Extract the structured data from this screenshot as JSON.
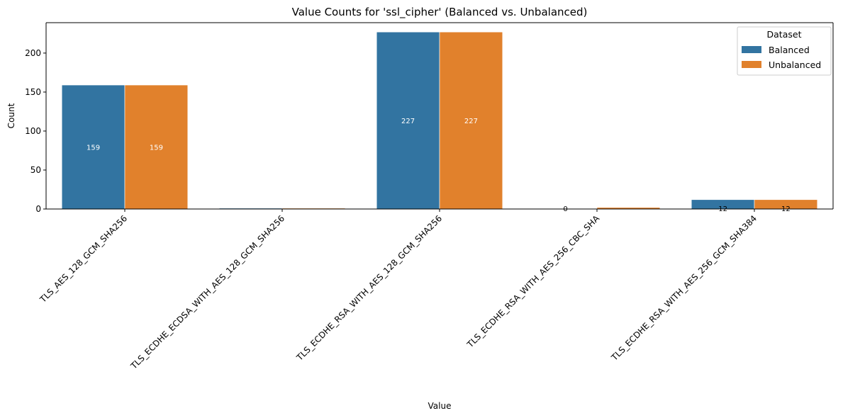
{
  "chart_data": {
    "type": "bar",
    "title": "Value Counts for 'ssl_cipher' (Balanced vs. Unbalanced)",
    "xlabel": "Value",
    "ylabel": "Count",
    "ylim": [
      0,
      239
    ],
    "yticks": [
      0,
      50,
      100,
      150,
      200
    ],
    "categories": [
      "TLS_AES_128_GCM_SHA256",
      "TLS_ECDHE_ECDSA_WITH_AES_128_GCM_SHA256",
      "TLS_ECDHE_RSA_WITH_AES_128_GCM_SHA256",
      "TLS_ECDHE_RSA_WITH_AES_256_CBC_SHA",
      "TLS_ECDHE_RSA_WITH_AES_256_GCM_SHA384"
    ],
    "series": [
      {
        "name": "Balanced",
        "color": "#3274a1",
        "values": [
          159,
          1,
          227,
          0,
          12
        ]
      },
      {
        "name": "Unbalanced",
        "color": "#e1812c",
        "values": [
          159,
          1,
          227,
          2,
          12
        ]
      }
    ],
    "bar_labels": [
      [
        "159",
        "",
        "227",
        "0",
        "12"
      ],
      [
        "159",
        "",
        "227",
        "",
        "12"
      ]
    ],
    "legend": {
      "title": "Dataset",
      "position": "upper right"
    },
    "grid": false
  }
}
